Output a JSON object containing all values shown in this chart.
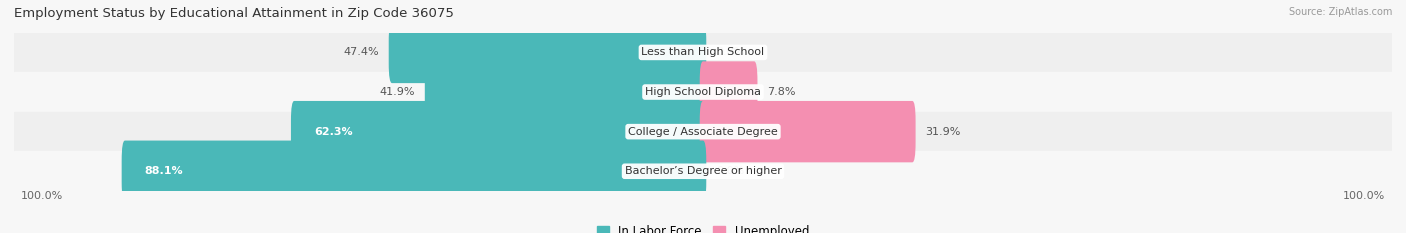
{
  "title": "Employment Status by Educational Attainment in Zip Code 36075",
  "source": "Source: ZipAtlas.com",
  "categories": [
    "Less than High School",
    "High School Diploma",
    "College / Associate Degree",
    "Bachelor’s Degree or higher"
  ],
  "labor_force": [
    47.4,
    41.9,
    62.3,
    88.1
  ],
  "unemployed": [
    0.0,
    7.8,
    31.9,
    0.0
  ],
  "labor_force_color": "#4ab8b8",
  "unemployed_color": "#f48fb1",
  "row_colors": [
    "#e8e8e8",
    "#f0f0f0",
    "#e8e8e8",
    "#f0f0f0"
  ],
  "axis_label_left": "100.0%",
  "axis_label_right": "100.0%",
  "label_fontsize": 8,
  "title_fontsize": 9.5,
  "legend_fontsize": 8.5
}
